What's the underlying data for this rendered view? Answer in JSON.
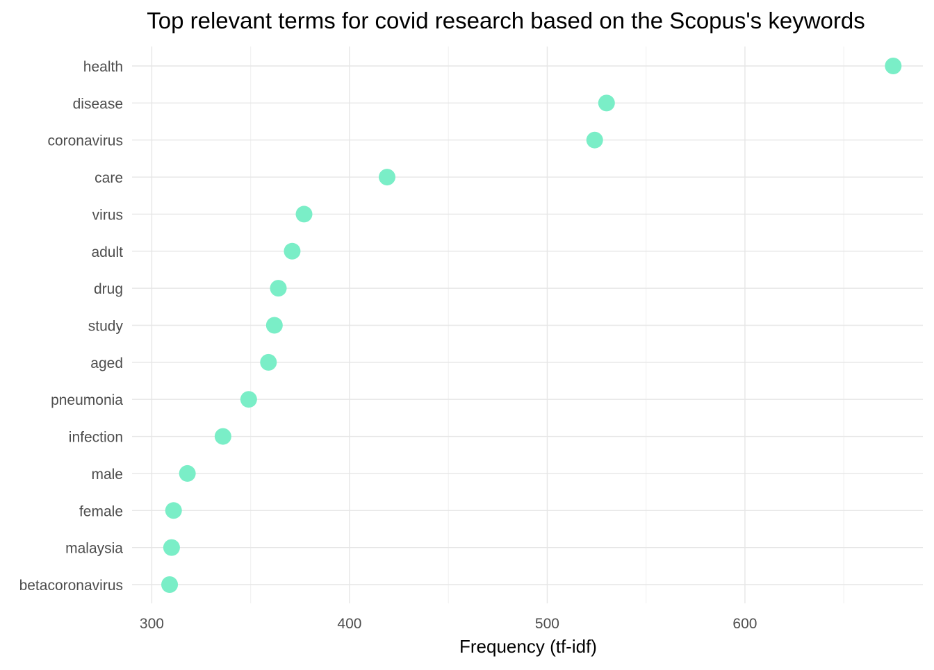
{
  "chart_data": {
    "type": "scatter",
    "title": "Top relevant terms for covid research based on the Scopus's keywords",
    "xlabel": "Frequency (tf-idf)",
    "ylabel": "",
    "xlim": [
      290,
      690
    ],
    "xticks": [
      300,
      400,
      500,
      600
    ],
    "x_minor_gridlines": [
      350,
      450,
      550,
      650
    ],
    "grid": true,
    "legend": "none",
    "point_color": "#7aeec7",
    "categories": [
      "health",
      "disease",
      "coronavirus",
      "care",
      "virus",
      "adult",
      "drug",
      "study",
      "aged",
      "pneumonia",
      "infection",
      "male",
      "female",
      "malaysia",
      "betacoronavirus"
    ],
    "values": [
      675,
      530,
      524,
      419,
      377,
      371,
      364,
      362,
      359,
      349,
      336,
      318,
      311,
      310,
      309
    ]
  }
}
